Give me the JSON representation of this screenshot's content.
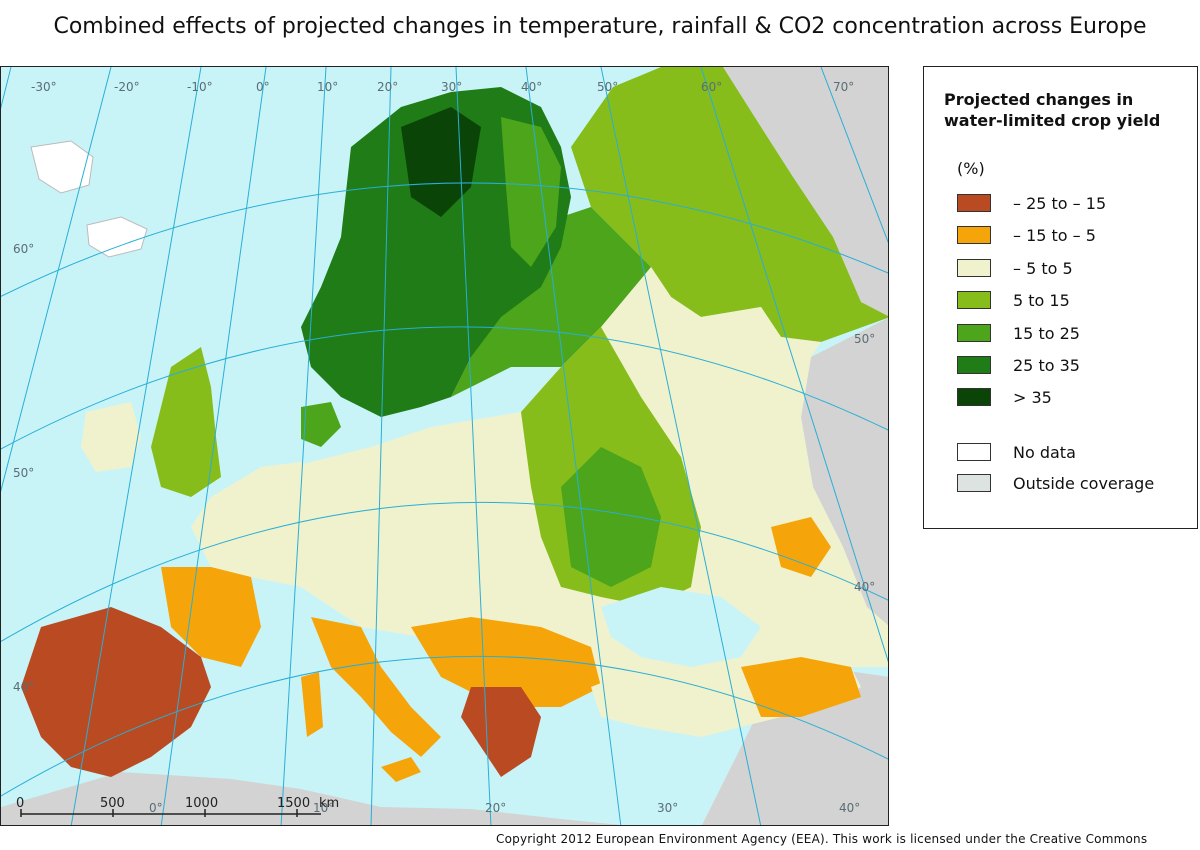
{
  "title": "Combined effects of projected changes in temperature, rainfall & CO2 concentration across Europe",
  "colors": {
    "sea": "#c8f4f8",
    "outside": "#d3d3d3",
    "border": "#6b6b6b",
    "graticule": "#2aaed6"
  },
  "legend": {
    "title": "Projected changes in water-limited crop yield",
    "unit": "(%)",
    "classes": [
      {
        "label": "– 25 to – 15",
        "color": "#b94a22"
      },
      {
        "label": "– 15 to – 5",
        "color": "#f5a50a"
      },
      {
        "label": "– 5 to 5",
        "color": "#f0f2cd"
      },
      {
        "label": "5 to 15",
        "color": "#86bd1a"
      },
      {
        "label": "15 to 25",
        "color": "#4ca51a"
      },
      {
        "label": "25 to 35",
        "color": "#1f7c17"
      },
      {
        "label": "> 35",
        "color": "#0b4407"
      }
    ],
    "extra": [
      {
        "label": "No data",
        "color": "#ffffff"
      },
      {
        "label": "Outside coverage",
        "color": "#dde3e1"
      }
    ]
  },
  "graticule_labels": {
    "top": [
      "-30°",
      "-20°",
      "-10°",
      "0°",
      "10°",
      "20°",
      "30°",
      "40°",
      "50°",
      "60°",
      "70°"
    ],
    "left": [
      "60°",
      "50°",
      "40°"
    ],
    "right": [
      "50°",
      "40°"
    ],
    "bottom": [
      "0°",
      "10°",
      "20°",
      "30°",
      "40°"
    ]
  },
  "scale_bar": {
    "ticks": [
      "0",
      "500",
      "1000",
      "1500"
    ],
    "unit": "km"
  },
  "copyright": "Copyright 2012 European Environment Agency (EEA). This work is licensed under the Creative Commons"
}
